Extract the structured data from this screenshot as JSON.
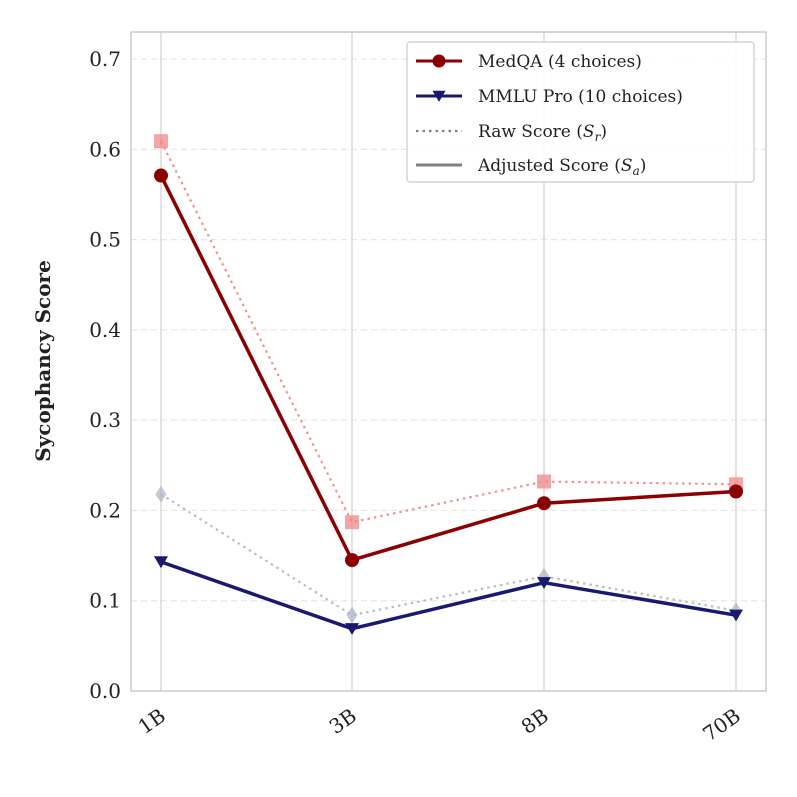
{
  "chart_data": {
    "type": "line",
    "title": "",
    "xlabel": "",
    "ylabel": "Sycophancy Score",
    "categories": [
      "1B",
      "3B",
      "8B",
      "70B"
    ],
    "ylim": [
      0.0,
      0.73
    ],
    "yticks": [
      "0.0",
      "0.1",
      "0.2",
      "0.3",
      "0.4",
      "0.5",
      "0.6",
      "0.7"
    ],
    "grid": true,
    "legend_position": "top-right",
    "series": [
      {
        "name": "MedQA (4 choices)",
        "kind": "adjusted",
        "values": [
          0.571,
          0.145,
          0.208,
          0.221
        ],
        "color": "#8b0000",
        "marker": "circle"
      },
      {
        "name": "MMLU Pro (10 choices)",
        "kind": "adjusted",
        "values": [
          0.143,
          0.069,
          0.12,
          0.084
        ],
        "color": "#191970",
        "marker": "triangle-down"
      },
      {
        "name": "",
        "kind": "raw",
        "values": [
          0.609,
          0.187,
          0.232,
          0.229
        ],
        "color": "#f08080",
        "marker": "square"
      },
      {
        "name": "",
        "kind": "raw",
        "values": [
          0.218,
          0.084,
          0.127,
          0.089
        ],
        "color": "#a9b4c2",
        "marker": "diamond"
      }
    ],
    "legend": [
      {
        "label": "MedQA (4 choices)",
        "style": "line-marker",
        "color": "#8b0000",
        "marker": "circle"
      },
      {
        "label": "MMLU Pro (10 choices)",
        "style": "line-marker",
        "color": "#191970",
        "marker": "triangle-down"
      },
      {
        "label": "Raw Score (",
        "sym": "S",
        "sub": "r",
        "tail": ")",
        "style": "dotted",
        "color": "#808080"
      },
      {
        "label": "Adjusted Score (",
        "sym": "S",
        "sub": "a",
        "tail": ")",
        "style": "solid",
        "color": "#808080"
      }
    ]
  }
}
